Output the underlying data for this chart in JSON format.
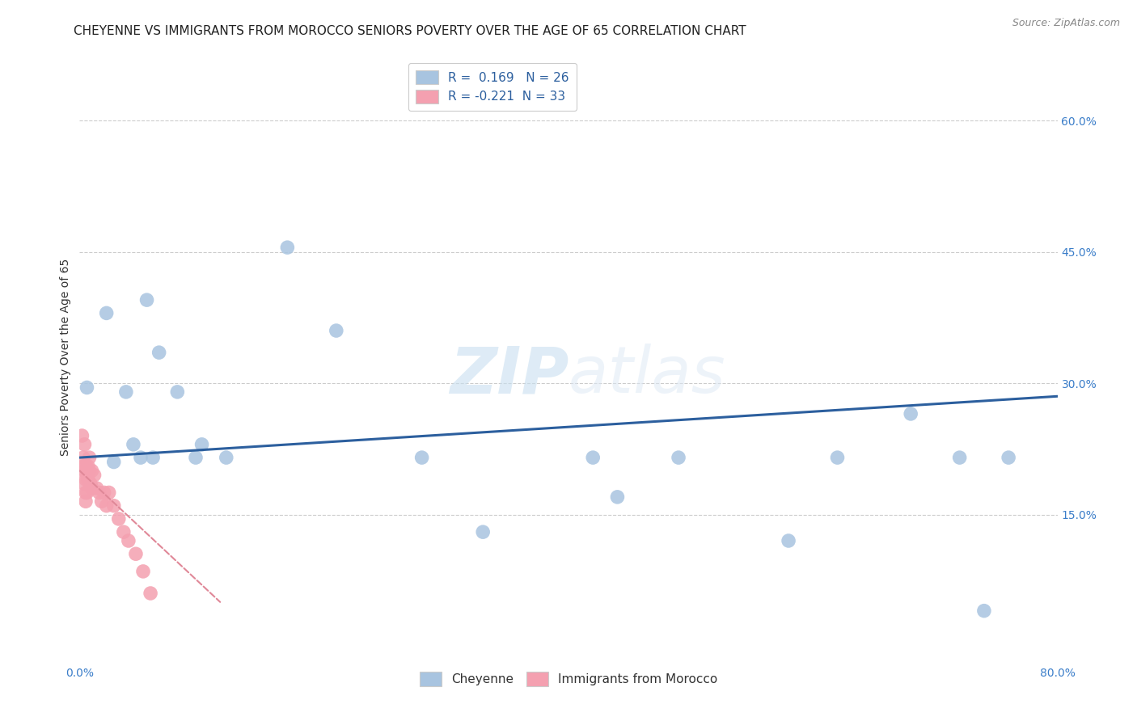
{
  "title": "CHEYENNE VS IMMIGRANTS FROM MOROCCO SENIORS POVERTY OVER THE AGE OF 65 CORRELATION CHART",
  "source": "Source: ZipAtlas.com",
  "ylabel": "Seniors Poverty Over the Age of 65",
  "xlim": [
    0.0,
    0.8
  ],
  "ylim": [
    -0.02,
    0.68
  ],
  "xticks": [
    0.0,
    0.1,
    0.2,
    0.3,
    0.4,
    0.5,
    0.6,
    0.7,
    0.8
  ],
  "xticklabels": [
    "0.0%",
    "",
    "",
    "",
    "",
    "",
    "",
    "",
    "80.0%"
  ],
  "ytick_positions": [
    0.15,
    0.3,
    0.45,
    0.6
  ],
  "ytick_labels": [
    "15.0%",
    "30.0%",
    "45.0%",
    "60.0%"
  ],
  "grid_color": "#cccccc",
  "background_color": "#ffffff",
  "watermark_zip": "ZIP",
  "watermark_atlas": "atlas",
  "cheyenne_r": 0.169,
  "cheyenne_n": 26,
  "morocco_r": -0.221,
  "morocco_n": 33,
  "cheyenne_color": "#a8c4e0",
  "morocco_color": "#f4a0b0",
  "cheyenne_line_color": "#2c5f9e",
  "morocco_line_color": "#e08898",
  "cheyenne_x": [
    0.006,
    0.022,
    0.028,
    0.038,
    0.044,
    0.05,
    0.055,
    0.06,
    0.065,
    0.08,
    0.095,
    0.1,
    0.12,
    0.17,
    0.21,
    0.28,
    0.33,
    0.42,
    0.44,
    0.49,
    0.58,
    0.62,
    0.68,
    0.72,
    0.74,
    0.76
  ],
  "cheyenne_y": [
    0.295,
    0.38,
    0.21,
    0.29,
    0.23,
    0.215,
    0.395,
    0.215,
    0.335,
    0.29,
    0.215,
    0.23,
    0.215,
    0.455,
    0.36,
    0.215,
    0.13,
    0.215,
    0.17,
    0.215,
    0.12,
    0.215,
    0.265,
    0.215,
    0.04,
    0.215
  ],
  "morocco_x": [
    0.002,
    0.003,
    0.003,
    0.004,
    0.004,
    0.004,
    0.005,
    0.005,
    0.005,
    0.005,
    0.006,
    0.006,
    0.007,
    0.007,
    0.008,
    0.008,
    0.009,
    0.01,
    0.01,
    0.012,
    0.014,
    0.016,
    0.018,
    0.02,
    0.022,
    0.024,
    0.028,
    0.032,
    0.036,
    0.04,
    0.046,
    0.052,
    0.058
  ],
  "morocco_y": [
    0.24,
    0.215,
    0.205,
    0.23,
    0.2,
    0.185,
    0.205,
    0.19,
    0.175,
    0.165,
    0.195,
    0.175,
    0.205,
    0.19,
    0.215,
    0.2,
    0.185,
    0.2,
    0.18,
    0.195,
    0.18,
    0.175,
    0.165,
    0.175,
    0.16,
    0.175,
    0.16,
    0.145,
    0.13,
    0.12,
    0.105,
    0.085,
    0.06
  ],
  "legend_cheyenne": "Cheyenne",
  "legend_morocco": "Immigrants from Morocco",
  "title_fontsize": 11,
  "source_fontsize": 9,
  "axis_label_fontsize": 10,
  "tick_fontsize": 10,
  "legend_fontsize": 11
}
